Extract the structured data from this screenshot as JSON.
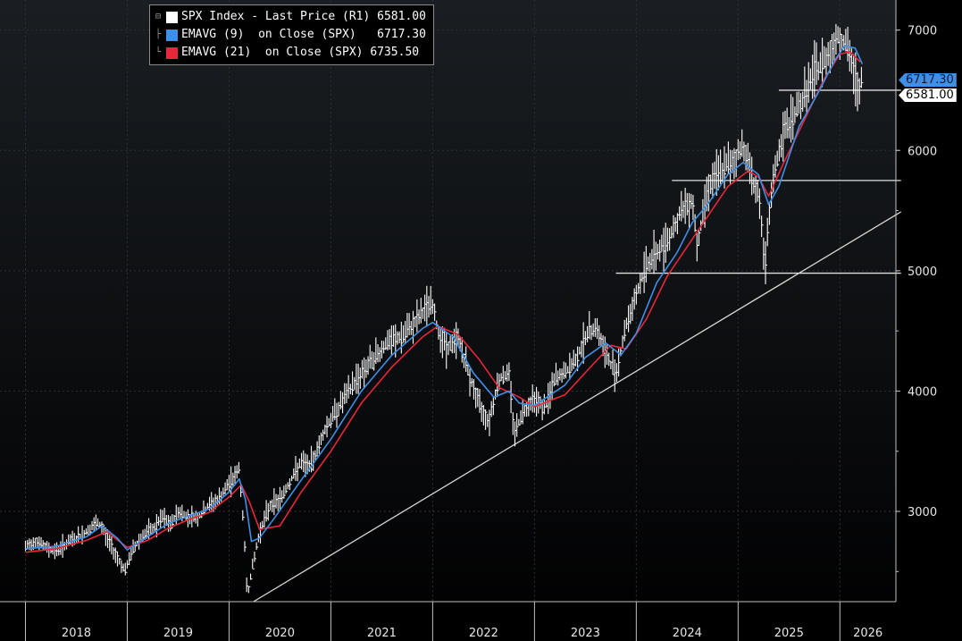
{
  "chart_data": {
    "type": "line",
    "title": "",
    "xlabel": "",
    "ylabel": "",
    "ylim": [
      2250,
      7250
    ],
    "y_ticks": [
      "3000",
      "4000",
      "5000",
      "6000",
      "7000"
    ],
    "x_ticks": [
      "2018",
      "2019",
      "2020",
      "2021",
      "2022",
      "2023",
      "2024",
      "2025",
      "2026"
    ],
    "legend": {
      "position": "top-left",
      "entries": [
        {
          "label": "SPX Index - Last Price (R1)",
          "value": "6581.00",
          "color": "#ffffff"
        },
        {
          "label": "EMAVG (9)  on Close (SPX)",
          "value": "6717.30",
          "color": "#3f8fe6"
        },
        {
          "label": "EMAVG (21)  on Close (SPX)",
          "value": "6735.50",
          "color": "#e8273a"
        }
      ]
    },
    "last_price_tags": [
      {
        "text": "6717.30",
        "color": "#3f8fe6"
      },
      {
        "text": "6581.00",
        "color": "#ffffff"
      }
    ],
    "series": [
      {
        "name": "SPX Index - Last Price",
        "color": "#ffffff",
        "x": [
          2018.0,
          2018.1,
          2018.2,
          2018.3,
          2018.45,
          2018.55,
          2018.7,
          2018.75,
          2018.85,
          2018.98,
          2019.05,
          2019.15,
          2019.25,
          2019.35,
          2019.42,
          2019.5,
          2019.6,
          2019.7,
          2019.8,
          2019.9,
          2020.0,
          2020.1,
          2020.14,
          2020.18,
          2020.22,
          2020.3,
          2020.4,
          2020.5,
          2020.6,
          2020.7,
          2020.8,
          2020.95,
          2021.1,
          2021.25,
          2021.4,
          2021.55,
          2021.7,
          2021.85,
          2021.99,
          2022.05,
          2022.15,
          2022.25,
          2022.35,
          2022.45,
          2022.55,
          2022.65,
          2022.75,
          2022.8,
          2022.9,
          2023.0,
          2023.1,
          2023.2,
          2023.3,
          2023.4,
          2023.5,
          2023.6,
          2023.7,
          2023.8,
          2023.9,
          2024.0,
          2024.1,
          2024.2,
          2024.3,
          2024.45,
          2024.55,
          2024.6,
          2024.7,
          2024.85,
          2024.95,
          2025.05,
          2025.15,
          2025.22,
          2025.26,
          2025.3,
          2025.35,
          2025.45,
          2025.55,
          2025.65,
          2025.75,
          2025.85,
          2025.92,
          2025.98,
          2026.05,
          2026.12,
          2026.18,
          2026.22
        ],
        "y": [
          2700,
          2760,
          2700,
          2670,
          2760,
          2800,
          2900,
          2870,
          2700,
          2500,
          2680,
          2800,
          2850,
          2950,
          2880,
          3000,
          2950,
          2950,
          3050,
          3100,
          3230,
          3350,
          2900,
          2300,
          2500,
          2830,
          3050,
          3100,
          3250,
          3400,
          3380,
          3700,
          3900,
          4100,
          4250,
          4400,
          4450,
          4600,
          4750,
          4500,
          4350,
          4450,
          4150,
          3900,
          3750,
          4100,
          4150,
          3650,
          3850,
          3950,
          3850,
          4100,
          4150,
          4250,
          4450,
          4550,
          4300,
          4150,
          4550,
          4800,
          5050,
          5150,
          5250,
          5500,
          5600,
          5200,
          5700,
          5850,
          5900,
          6050,
          5750,
          5550,
          4950,
          5400,
          5800,
          6150,
          6300,
          6450,
          6650,
          6750,
          6850,
          6950,
          6900,
          6700,
          6500,
          6581
        ]
      },
      {
        "name": "EMAVG (9) on Close (SPX)",
        "color": "#3f8fe6",
        "x": [
          2018.0,
          2018.3,
          2018.6,
          2018.75,
          2018.9,
          2019.0,
          2019.2,
          2019.4,
          2019.6,
          2019.8,
          2020.0,
          2020.1,
          2020.16,
          2020.22,
          2020.3,
          2020.45,
          2020.7,
          2021.0,
          2021.3,
          2021.6,
          2021.9,
          2022.0,
          2022.2,
          2022.4,
          2022.6,
          2022.75,
          2022.85,
          2023.0,
          2023.3,
          2023.5,
          2023.7,
          2023.85,
          2024.0,
          2024.2,
          2024.4,
          2024.55,
          2024.7,
          2024.9,
          2025.05,
          2025.2,
          2025.3,
          2025.4,
          2025.6,
          2025.8,
          2025.95,
          2026.05,
          2026.15,
          2026.22
        ],
        "y": [
          2690,
          2710,
          2790,
          2880,
          2780,
          2680,
          2790,
          2900,
          2960,
          3020,
          3160,
          3270,
          3100,
          2750,
          2780,
          2950,
          3250,
          3600,
          4000,
          4300,
          4520,
          4570,
          4450,
          4150,
          3950,
          4000,
          3900,
          3880,
          4050,
          4280,
          4400,
          4300,
          4480,
          4900,
          5150,
          5400,
          5550,
          5800,
          5900,
          5800,
          5550,
          5700,
          6200,
          6500,
          6750,
          6870,
          6850,
          6717
        ]
      },
      {
        "name": "EMAVG (21) on Close (SPX)",
        "color": "#e8273a",
        "x": [
          2018.0,
          2018.3,
          2018.6,
          2018.8,
          2019.0,
          2019.2,
          2019.4,
          2019.6,
          2019.8,
          2020.0,
          2020.12,
          2020.2,
          2020.3,
          2020.5,
          2020.7,
          2021.0,
          2021.3,
          2021.6,
          2021.9,
          2022.05,
          2022.25,
          2022.45,
          2022.65,
          2022.85,
          2023.0,
          2023.3,
          2023.55,
          2023.75,
          2023.9,
          2024.1,
          2024.3,
          2024.5,
          2024.7,
          2024.9,
          2025.1,
          2025.2,
          2025.3,
          2025.45,
          2025.65,
          2025.85,
          2026.0,
          2026.1,
          2026.2
        ],
        "y": [
          2660,
          2690,
          2760,
          2830,
          2700,
          2760,
          2860,
          2930,
          2990,
          3120,
          3220,
          3080,
          2850,
          2880,
          3150,
          3500,
          3900,
          4200,
          4450,
          4540,
          4470,
          4270,
          4030,
          3950,
          3870,
          3970,
          4200,
          4380,
          4350,
          4600,
          4950,
          5200,
          5450,
          5700,
          5830,
          5780,
          5620,
          5900,
          6250,
          6600,
          6800,
          6820,
          6735
        ]
      }
    ],
    "reference_lines": [
      {
        "label": "trend",
        "x1": 2020.24,
        "y1": 2250,
        "x2": 2026.6,
        "y2": 5490,
        "color": "#d8d8d8"
      },
      {
        "label": "support-5000",
        "x1": 2023.8,
        "x2": 2026.6,
        "y": 4980,
        "color": "#e0e0e0"
      },
      {
        "label": "support-5750",
        "x1": 2024.35,
        "x2": 2026.6,
        "y": 5750,
        "color": "#e0e0e0"
      },
      {
        "label": "level-6500",
        "x1": 2025.4,
        "x2": 2026.6,
        "y": 6500,
        "color": "#e0e0e0"
      }
    ]
  }
}
